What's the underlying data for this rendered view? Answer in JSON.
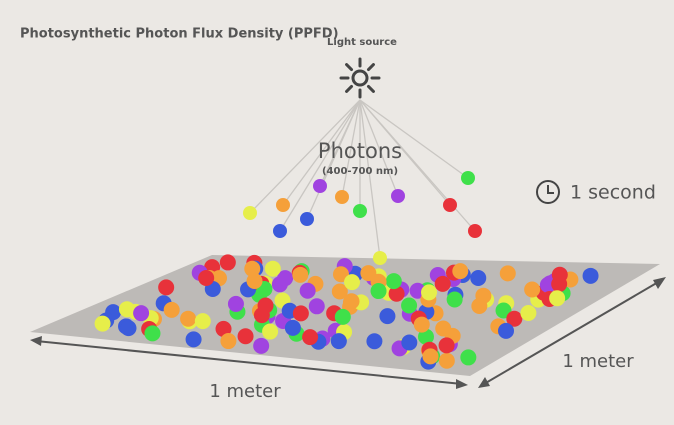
{
  "title": "Photosynthetic Photon Flux Density (PPFD)",
  "light_source": "Light source",
  "photons": {
    "label": "Photons",
    "range": "(400-700 nm)"
  },
  "time": "1 second",
  "width_label": "1 meter",
  "depth_label": "1 meter"
}
